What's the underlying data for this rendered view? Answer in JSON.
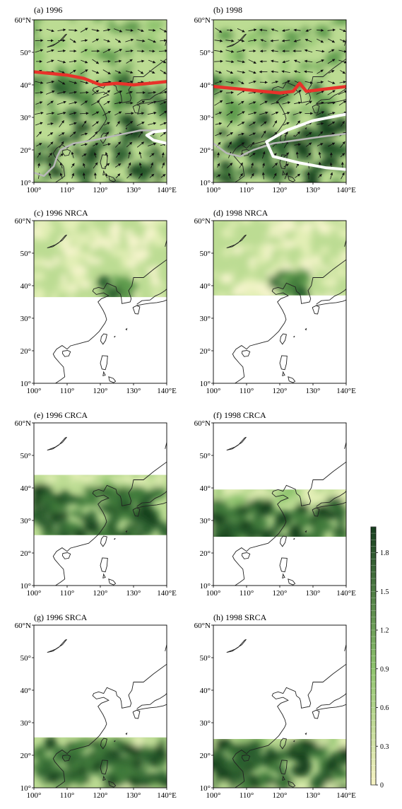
{
  "panels": [
    {
      "id": "a",
      "title": "(a) 1996",
      "type": "field-winds"
    },
    {
      "id": "b",
      "title": "(b) 1998",
      "type": "field-winds"
    },
    {
      "id": "c",
      "title": "(c) 1996 NRCA",
      "type": "region",
      "band": [
        40,
        52
      ],
      "mask_lat": [
        36.5,
        60
      ]
    },
    {
      "id": "d",
      "title": "(d) 1998 NRCA",
      "type": "region",
      "band": [
        38,
        52
      ],
      "mask_lat": [
        37.0,
        60
      ]
    },
    {
      "id": "e",
      "title": "(e) 1996 CRCA",
      "type": "region",
      "band": [
        20,
        40
      ],
      "mask_lat": [
        25.5,
        44
      ]
    },
    {
      "id": "f",
      "title": "(f) 1998 CRCA",
      "type": "region",
      "band": [
        20,
        36
      ],
      "mask_lat": [
        25.0,
        39.5
      ]
    },
    {
      "id": "g",
      "title": "(g) 1996 SRCA",
      "type": "region",
      "band": [
        10,
        24
      ],
      "mask_lat": [
        10,
        25.5
      ]
    },
    {
      "id": "h",
      "title": "(h) 1998 SRCA",
      "type": "region",
      "band": [
        10,
        24
      ],
      "mask_lat": [
        10,
        25.0
      ]
    }
  ],
  "axes": {
    "lon_range": [
      100,
      140
    ],
    "lat_range": [
      10,
      60
    ],
    "lon_ticks": [
      "100°",
      "110°",
      "120°",
      "130°",
      "140°E"
    ],
    "lat_ticks": [
      "10°",
      "20°",
      "30°",
      "40°",
      "50°",
      "60°N"
    ],
    "lon_values": [
      100,
      110,
      120,
      130,
      140
    ],
    "lat_values": [
      10,
      20,
      30,
      40,
      50,
      60
    ]
  },
  "colorbar": {
    "min": 0,
    "max": 2.0,
    "ticks": [
      "0",
      "0.3",
      "0.6",
      "0.9",
      "1.2",
      "1.5",
      "1.8"
    ],
    "tick_values": [
      0,
      0.3,
      0.6,
      0.9,
      1.2,
      1.5,
      1.8
    ],
    "color_low": "#f7f3c4",
    "color_mid": "#8fc46e",
    "color_high": "#173f1f"
  },
  "lines": {
    "red_1996": [
      [
        100,
        44
      ],
      [
        105,
        43.5
      ],
      [
        110,
        43
      ],
      [
        115,
        42
      ],
      [
        120,
        40
      ],
      [
        125,
        40.5
      ],
      [
        130,
        40
      ],
      [
        135,
        40.5
      ],
      [
        140,
        41
      ]
    ],
    "red_1998": [
      [
        100,
        39.5
      ],
      [
        105,
        39
      ],
      [
        110,
        38.5
      ],
      [
        115,
        38
      ],
      [
        120,
        37.5
      ],
      [
        124,
        38
      ],
      [
        126,
        40.5
      ],
      [
        128,
        38
      ],
      [
        132,
        38.5
      ],
      [
        136,
        39
      ],
      [
        140,
        39.5
      ]
    ],
    "white_1996": [
      [
        140,
        26
      ],
      [
        136,
        25.5
      ],
      [
        134,
        24.5
      ],
      [
        136,
        23
      ],
      [
        140,
        22
      ]
    ],
    "white_1998": [
      [
        140,
        31
      ],
      [
        130,
        29
      ],
      [
        122,
        26
      ],
      [
        116,
        22.5
      ],
      [
        118,
        18
      ],
      [
        126,
        16
      ],
      [
        134,
        14.5
      ],
      [
        140,
        14
      ]
    ],
    "gray_1996": [
      [
        100,
        13
      ],
      [
        103,
        12
      ],
      [
        106,
        15
      ],
      [
        107,
        18
      ],
      [
        108,
        20
      ],
      [
        112,
        22
      ],
      [
        118,
        23
      ],
      [
        125,
        24.5
      ],
      [
        132,
        26
      ],
      [
        140,
        26
      ]
    ],
    "gray_1998": [
      [
        100,
        22
      ],
      [
        104,
        19
      ],
      [
        108,
        18
      ],
      [
        112,
        20
      ],
      [
        118,
        22
      ],
      [
        125,
        23
      ],
      [
        132,
        24
      ],
      [
        140,
        25
      ]
    ],
    "color_red": "#e8322a",
    "color_white": "#ffffff",
    "color_gray": "#b8b8b8"
  }
}
